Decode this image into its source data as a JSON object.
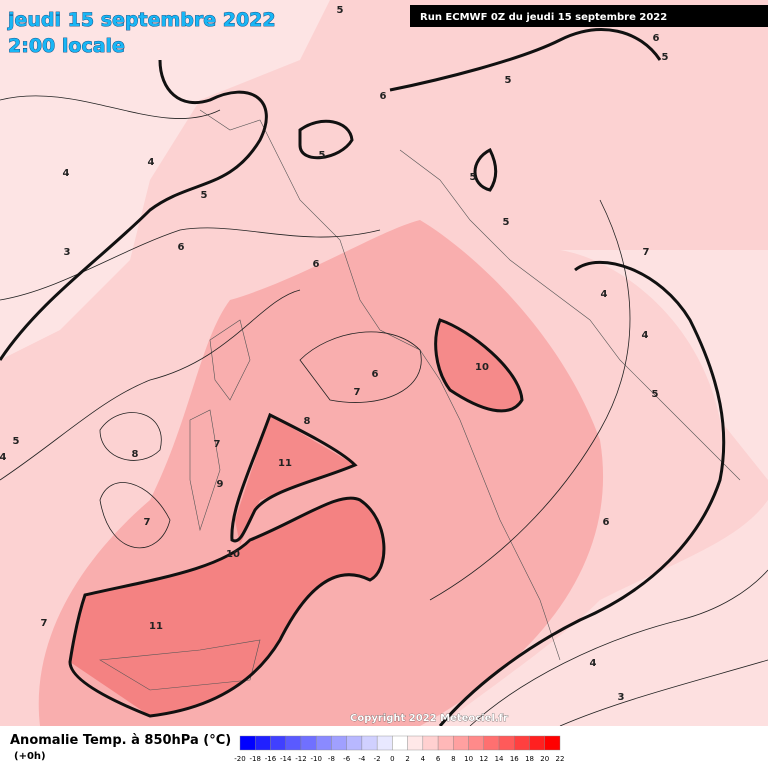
{
  "header": {
    "date": "jeudi 15 septembre 2022",
    "time": "2:00 locale"
  },
  "run": "Run ECMWF 0Z du jeudi 15 septembre 2022",
  "copyright": "Copyright 2022 Meteociel.fr",
  "contour_labels": [
    "5",
    "6",
    "5",
    "5",
    "6",
    "5",
    "4",
    "4",
    "5",
    "5",
    "5",
    "3",
    "6",
    "6",
    "7",
    "4",
    "4",
    "10",
    "6",
    "7",
    "5",
    "8",
    "7",
    "8",
    "5",
    "4",
    "11",
    "9",
    "7",
    "6",
    "10",
    "7",
    "11",
    "4",
    "3"
  ],
  "legend": {
    "title": "Anomalie Temp. à 850hPa (°C)",
    "subtitle": "(+0h)",
    "labels": [
      "-20",
      "-18",
      "-16",
      "-14",
      "-12",
      "-10",
      "-8",
      "-6",
      "-4",
      "-2",
      "0",
      "2",
      "4",
      "6",
      "8",
      "10",
      "12",
      "14",
      "16",
      "18",
      "20",
      "22"
    ],
    "colors": [
      "#0000ff",
      "#2020ff",
      "#4040ff",
      "#5a5aff",
      "#7070ff",
      "#8a8aff",
      "#a0a0ff",
      "#b8b8ff",
      "#d0d0ff",
      "#e8e8ff",
      "#ffffff",
      "#ffe8e8",
      "#ffd0d0",
      "#ffb8b8",
      "#ffa0a0",
      "#ff8a8a",
      "#ff7070",
      "#ff5a5a",
      "#ff4040",
      "#ff2020",
      "#ff0000"
    ]
  }
}
